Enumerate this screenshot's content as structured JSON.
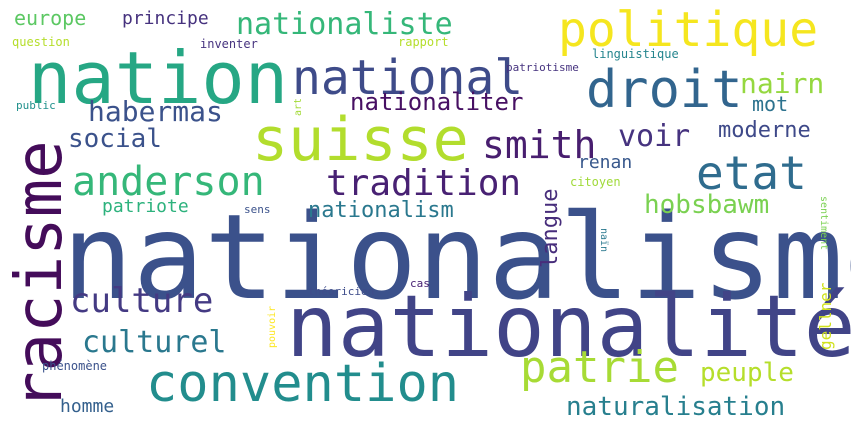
{
  "words": [
    {
      "text": "nationalisme",
      "color": "#3b518b"
    },
    {
      "text": "nationalité",
      "color": "#414487"
    },
    {
      "text": "nation",
      "color": "#26a784"
    },
    {
      "text": "racisme",
      "color": "#440c5a"
    },
    {
      "text": "suisse",
      "color": "#b2dd2d"
    },
    {
      "text": "convention",
      "color": "#228d8d"
    },
    {
      "text": "politique",
      "color": "#f5e61f"
    },
    {
      "text": "national",
      "color": "#3e4b89"
    },
    {
      "text": "droit",
      "color": "#32658e"
    },
    {
      "text": "patrie",
      "color": "#a7db35"
    },
    {
      "text": "etat",
      "color": "#2f6c8e"
    },
    {
      "text": "anderson",
      "color": "#35b779"
    },
    {
      "text": "smith",
      "color": "#481e6f"
    },
    {
      "text": "tradition",
      "color": "#482173"
    },
    {
      "text": "culture",
      "color": "#443a83"
    },
    {
      "text": "nationaliste",
      "color": "#35b779"
    },
    {
      "text": "culturel",
      "color": "#2a788e"
    },
    {
      "text": "peuple",
      "color": "#b5de2b"
    },
    {
      "text": "nationaliter",
      "color": "#471063"
    },
    {
      "text": "habermas",
      "color": "#3b528b"
    },
    {
      "text": "naturalisation",
      "color": "#277f8e"
    },
    {
      "text": "voir",
      "color": "#46337f"
    },
    {
      "text": "hobsbawm",
      "color": "#7ad151"
    },
    {
      "text": "moderne",
      "color": "#3e4989"
    },
    {
      "text": "social",
      "color": "#3b528b"
    },
    {
      "text": "nairn",
      "color": "#95d840"
    },
    {
      "text": "nationalism",
      "color": "#2a788e"
    },
    {
      "text": "langue",
      "color": "#472d7b"
    },
    {
      "text": "europe",
      "color": "#5cc863"
    },
    {
      "text": "principe",
      "color": "#46327e"
    },
    {
      "text": "mot",
      "color": "#2c728e"
    },
    {
      "text": "renan",
      "color": "#38588c"
    },
    {
      "text": "patriote",
      "color": "#2db27d"
    },
    {
      "text": "homme",
      "color": "#34608d"
    },
    {
      "text": "gellner",
      "color": "#d0e11c"
    },
    {
      "text": "question",
      "color": "#b5de2b"
    },
    {
      "text": "rapport",
      "color": "#b5de2b"
    },
    {
      "text": "inventer",
      "color": "#46337f"
    },
    {
      "text": "linguistique",
      "color": "#25858e"
    },
    {
      "text": "patriotisme",
      "color": "#46337f"
    },
    {
      "text": "citoyen",
      "color": "#a0da39"
    },
    {
      "text": "public",
      "color": "#21918c"
    },
    {
      "text": "art",
      "color": "#a2da37"
    },
    {
      "text": "sens",
      "color": "#3b528b"
    },
    {
      "text": "naïn",
      "color": "#2a788e"
    },
    {
      "text": "sentiment",
      "color": "#7ad151"
    },
    {
      "text": "phénomène",
      "color": "#3b528b"
    },
    {
      "text": "théoricien",
      "color": "#3e4c8a"
    },
    {
      "text": "cas",
      "color": "#482173"
    },
    {
      "text": "pouvoir",
      "color": "#fde725"
    }
  ]
}
